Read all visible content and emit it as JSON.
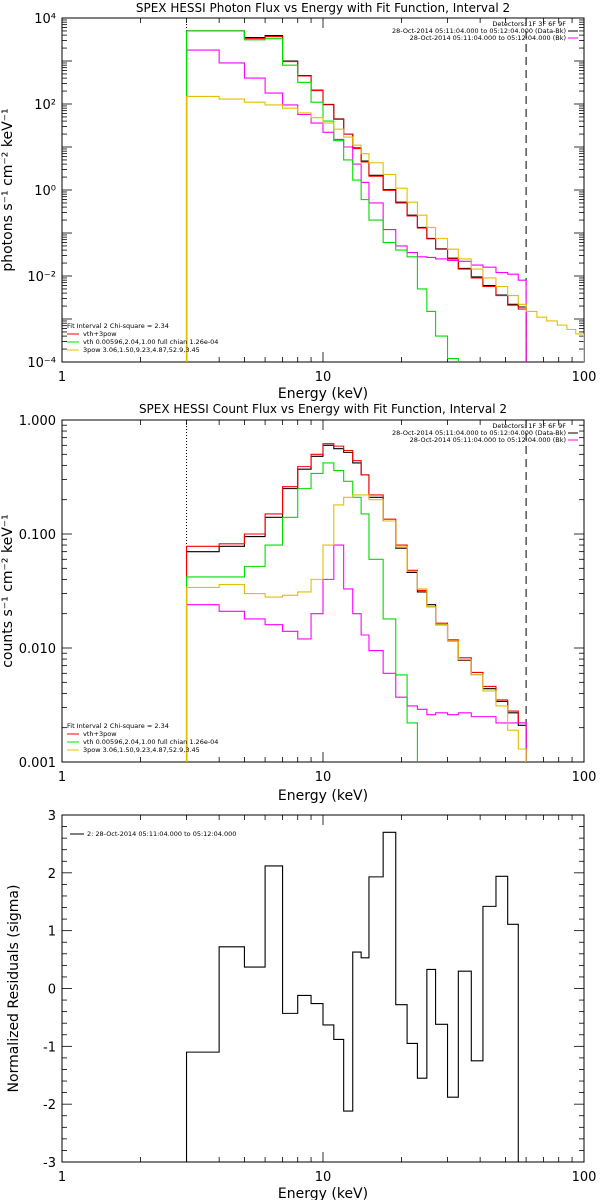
{
  "chart_data": [
    {
      "type": "line",
      "title": "SPEX HESSI Photon Flux vs Energy with Fit Function, Interval 2",
      "xlabel": "Energy (keV)",
      "ylabel": "photons s⁻¹ cm⁻² keV⁻¹",
      "xscale": "log",
      "yscale": "log",
      "xlim": [
        1,
        100
      ],
      "ylim": [
        0.0001,
        10000
      ],
      "x_ticks": [
        {
          "v": 1,
          "label": "1"
        },
        {
          "v": 10,
          "label": "10"
        },
        {
          "v": 100,
          "label": "100"
        }
      ],
      "y_ticks": [
        {
          "v": 10000,
          "label": "10⁴"
        },
        {
          "v": 100,
          "label": "10²"
        },
        {
          "v": 1,
          "label": "10⁰"
        },
        {
          "v": 0.01,
          "label": "10⁻²"
        },
        {
          "v": 0.0001,
          "label": "10⁻⁴"
        }
      ],
      "vlines": [
        {
          "x": 3.0,
          "style": "dotted"
        },
        {
          "x": 60,
          "style": "dashed"
        }
      ],
      "legend_top_right": [
        {
          "text": "Detectors: 1F 3F 6F 9F",
          "color": "#000000",
          "line": false
        },
        {
          "text": "28-Oct-2014 05:11:04.000 to 05:12:04.000 (Data-Bk)",
          "color": "#000000",
          "line": true
        },
        {
          "text": "28-Oct-2014 05:11:04.000 to 05:12:04.000 (Bk)",
          "color": "#ff00ff",
          "line": true
        }
      ],
      "legend_bottom_left": [
        {
          "text": "Fit Interval 2   Chi-square = 2.34",
          "color": "#000000",
          "line": false
        },
        {
          "text": "vth+3pow",
          "color": "#ff0000",
          "line": true
        },
        {
          "text": "vth 0.00596,2.04,1.00  full chian 1.26e-04",
          "color": "#00dd00",
          "line": true
        },
        {
          "text": "3pow 3.06,1.50,9.23,4.87,52.9,3.45",
          "color": "#e0c000",
          "line": true
        }
      ],
      "series": [
        {
          "color": "#000000",
          "edges": [
            3,
            4,
            5,
            6,
            7,
            8,
            9,
            10,
            11,
            12,
            13,
            14,
            15,
            17,
            19,
            21,
            23,
            25,
            27,
            30,
            33,
            37,
            41,
            46,
            51,
            56,
            60
          ],
          "values": [
            5000,
            5000,
            3500,
            3900,
            1000,
            460,
            210,
            98,
            45,
            20,
            9.5,
            4.7,
            2.2,
            1.02,
            0.52,
            0.26,
            0.135,
            0.075,
            0.043,
            0.026,
            0.015,
            0.0095,
            0.006,
            0.0036,
            0.0022,
            0.0019
          ]
        },
        {
          "color": "#ff0000",
          "edges": [
            3,
            4,
            5,
            6,
            7,
            8,
            9,
            10,
            11,
            12,
            13,
            14,
            15,
            17,
            19,
            21,
            23,
            25,
            27,
            30,
            33,
            37,
            41,
            46,
            51,
            56,
            60
          ],
          "values": [
            5000,
            5000,
            3300,
            3700,
            970,
            450,
            205,
            96,
            44,
            20,
            9.2,
            4.5,
            2.1,
            0.98,
            0.5,
            0.25,
            0.13,
            0.073,
            0.042,
            0.025,
            0.0145,
            0.009,
            0.0057,
            0.0035,
            0.0021,
            0.0017
          ]
        },
        {
          "color": "#ff00ff",
          "edges": [
            3,
            4,
            5,
            6,
            7,
            8,
            9,
            10,
            11,
            12,
            13,
            14,
            15,
            17,
            19,
            21,
            23,
            25,
            27,
            30,
            33,
            37,
            41,
            46,
            51,
            56,
            60
          ],
          "values": [
            1800,
            900,
            400,
            180,
            95,
            57,
            36,
            22,
            15,
            10,
            4.0,
            1.5,
            0.5,
            0.12,
            0.05,
            0.035,
            0.028,
            0.027,
            0.025,
            0.023,
            0.022,
            0.018,
            0.016,
            0.012,
            0.011,
            0.008
          ]
        },
        {
          "color": "#00dd00",
          "edges": [
            3,
            4,
            5,
            6,
            7,
            8,
            9,
            10,
            11,
            12,
            13,
            14,
            15,
            17,
            19,
            21,
            23,
            25,
            27,
            30,
            33,
            35
          ],
          "values": [
            5000,
            5000,
            3100,
            3300,
            800,
            320,
            110,
            40,
            14,
            5.0,
            1.7,
            0.6,
            0.2,
            0.06,
            0.04,
            0.028,
            0.005,
            0.0015,
            0.0004,
            0.00012,
            5e-05
          ]
        },
        {
          "color": "#e0c000",
          "edges": [
            3,
            4,
            5,
            6,
            7,
            8,
            9,
            10,
            11,
            12,
            13,
            14,
            15,
            17,
            19,
            21,
            23,
            25,
            27,
            30,
            33,
            37,
            41,
            46,
            51,
            56,
            60,
            66,
            72,
            79,
            86,
            93,
            100
          ],
          "values": [
            150,
            130,
            110,
            95,
            80,
            62,
            48,
            36,
            26,
            17,
            11,
            7.0,
            4.3,
            2.3,
            1.1,
            0.52,
            0.26,
            0.135,
            0.075,
            0.042,
            0.025,
            0.0145,
            0.009,
            0.0057,
            0.0035,
            0.0022,
            0.0015,
            0.0011,
            0.0009,
            0.00072,
            0.00057,
            0.00045
          ]
        }
      ]
    },
    {
      "type": "line",
      "title": "SPEX HESSI Count Flux vs Energy with Fit Function, Interval 2",
      "xlabel": "Energy (keV)",
      "ylabel": "counts s⁻¹ cm⁻² keV⁻¹",
      "xscale": "log",
      "yscale": "log",
      "xlim": [
        1,
        100
      ],
      "ylim": [
        0.001,
        1
      ],
      "x_ticks": [
        {
          "v": 1,
          "label": "1"
        },
        {
          "v": 10,
          "label": "10"
        },
        {
          "v": 100,
          "label": "100"
        }
      ],
      "y_ticks": [
        {
          "v": 1,
          "label": "1.000"
        },
        {
          "v": 0.1,
          "label": "0.100"
        },
        {
          "v": 0.01,
          "label": "0.010"
        },
        {
          "v": 0.001,
          "label": "0.001"
        }
      ],
      "vlines": [
        {
          "x": 3.0,
          "style": "dotted"
        },
        {
          "x": 60,
          "style": "dashed"
        }
      ],
      "legend_top_right": [
        {
          "text": "Detectors: 1F 3F 6F 9F",
          "color": "#000000",
          "line": false
        },
        {
          "text": "28-Oct-2014 05:11:04.000 to 05:12:04.000 (Data-Bk)",
          "color": "#000000",
          "line": true
        },
        {
          "text": "28-Oct-2014 05:11:04.000 to 05:12:04.000 (Bk)",
          "color": "#ff00ff",
          "line": true
        }
      ],
      "legend_bottom_left": [
        {
          "text": "Fit Interval 2   Chi-square = 2.34",
          "color": "#000000",
          "line": false
        },
        {
          "text": "vth+3pow",
          "color": "#ff0000",
          "line": true
        },
        {
          "text": "vth 0.00596,2.04,1.00  full chian 1.26e-04",
          "color": "#00dd00",
          "line": true
        },
        {
          "text": "3pow 3.06,1.50,9.23,4.87,52.9,3.45",
          "color": "#e0c000",
          "line": true
        }
      ],
      "series": [
        {
          "color": "#000000",
          "edges": [
            3,
            4,
            5,
            6,
            7,
            8,
            9,
            10,
            11,
            12,
            13,
            14,
            15,
            17,
            19,
            21,
            23,
            25,
            27,
            30,
            33,
            37,
            41,
            46,
            51,
            56,
            60
          ],
          "values": [
            0.07,
            0.078,
            0.095,
            0.14,
            0.25,
            0.37,
            0.48,
            0.6,
            0.56,
            0.52,
            0.42,
            0.33,
            0.21,
            0.13,
            0.075,
            0.046,
            0.031,
            0.024,
            0.016,
            0.0115,
            0.0078,
            0.0058,
            0.0044,
            0.0034,
            0.0027,
            0.0021
          ]
        },
        {
          "color": "#ff0000",
          "edges": [
            3,
            4,
            5,
            6,
            7,
            8,
            9,
            10,
            11,
            12,
            13,
            14,
            15,
            17,
            19,
            21,
            23,
            25,
            27,
            30,
            33,
            37,
            41,
            46,
            51,
            56,
            60
          ],
          "values": [
            0.078,
            0.082,
            0.1,
            0.15,
            0.26,
            0.39,
            0.5,
            0.62,
            0.59,
            0.54,
            0.44,
            0.33,
            0.22,
            0.135,
            0.08,
            0.048,
            0.032,
            0.023,
            0.0165,
            0.0118,
            0.0082,
            0.0061,
            0.0046,
            0.0035,
            0.0028,
            0.0022
          ]
        },
        {
          "color": "#ff00ff",
          "edges": [
            3,
            4,
            5,
            6,
            7,
            8,
            9,
            10,
            11,
            12,
            13,
            14,
            15,
            17,
            19,
            21,
            23,
            25,
            27,
            30,
            33,
            37,
            41,
            46,
            51,
            56,
            60
          ],
          "values": [
            0.024,
            0.021,
            0.018,
            0.016,
            0.014,
            0.012,
            0.02,
            0.04,
            0.08,
            0.033,
            0.02,
            0.013,
            0.0095,
            0.006,
            0.0037,
            0.0031,
            0.0029,
            0.0026,
            0.0027,
            0.0026,
            0.0027,
            0.0025,
            0.0025,
            0.0022,
            0.0022,
            0.0022
          ]
        },
        {
          "color": "#00dd00",
          "edges": [
            3,
            4,
            5,
            6,
            7,
            8,
            9,
            10,
            11,
            12,
            13,
            14,
            15,
            17,
            19,
            21,
            23,
            25
          ],
          "values": [
            0.042,
            0.042,
            0.052,
            0.08,
            0.14,
            0.25,
            0.34,
            0.42,
            0.36,
            0.29,
            0.21,
            0.15,
            0.06,
            0.018,
            0.0058,
            0.0022,
            0.0008
          ]
        },
        {
          "color": "#e0c000",
          "edges": [
            3,
            4,
            5,
            6,
            7,
            8,
            9,
            10,
            11,
            12,
            13,
            14,
            15,
            17,
            19,
            21,
            23,
            25,
            27,
            30,
            33,
            37,
            41,
            46,
            51,
            56,
            60
          ],
          "values": [
            0.034,
            0.036,
            0.03,
            0.028,
            0.029,
            0.031,
            0.04,
            0.08,
            0.18,
            0.21,
            0.22,
            0.22,
            0.2,
            0.13,
            0.077,
            0.047,
            0.033,
            0.023,
            0.016,
            0.0115,
            0.0079,
            0.0058,
            0.0042,
            0.0031,
            0.0019,
            0.0013
          ]
        }
      ]
    },
    {
      "type": "line",
      "title": "",
      "xlabel": "Energy (keV)",
      "ylabel": "Normalized Residuals (sigma)",
      "xscale": "log",
      "yscale": "linear",
      "xlim": [
        1,
        100
      ],
      "ylim": [
        -3,
        3
      ],
      "x_ticks": [
        {
          "v": 1,
          "label": "1"
        },
        {
          "v": 10,
          "label": "10"
        },
        {
          "v": 100,
          "label": "100"
        }
      ],
      "y_ticks": [
        {
          "v": 3,
          "label": "3"
        },
        {
          "v": 2,
          "label": "2"
        },
        {
          "v": 1,
          "label": "1"
        },
        {
          "v": 0,
          "label": "0"
        },
        {
          "v": -1,
          "label": "-1"
        },
        {
          "v": -2,
          "label": "-2"
        },
        {
          "v": -3,
          "label": "-3"
        }
      ],
      "vlines": [],
      "legend_top_right": [],
      "legend_top_left": [
        {
          "text": "2: 28-Oct-2014 05:11:04.000 to 05:12:04.000",
          "color": "#000000",
          "line": true
        }
      ],
      "legend_bottom_left": [],
      "series": [
        {
          "color": "#000000",
          "edges": [
            3,
            4,
            5,
            6,
            7,
            8,
            9,
            10,
            11,
            12,
            13,
            14,
            15,
            17,
            19,
            21,
            23,
            25,
            27,
            30,
            33,
            37,
            41,
            46,
            51,
            56,
            60
          ],
          "values": [
            -1.1,
            0.72,
            0.37,
            2.12,
            -0.43,
            -0.12,
            -0.26,
            -0.63,
            -0.88,
            -2.12,
            0.63,
            0.53,
            1.93,
            2.7,
            -0.28,
            -0.95,
            -1.55,
            0.33,
            -0.62,
            -1.88,
            0.3,
            -1.25,
            1.42,
            1.94,
            1.11,
            -3.2
          ],
          "drop_to_floor": true
        }
      ]
    }
  ]
}
